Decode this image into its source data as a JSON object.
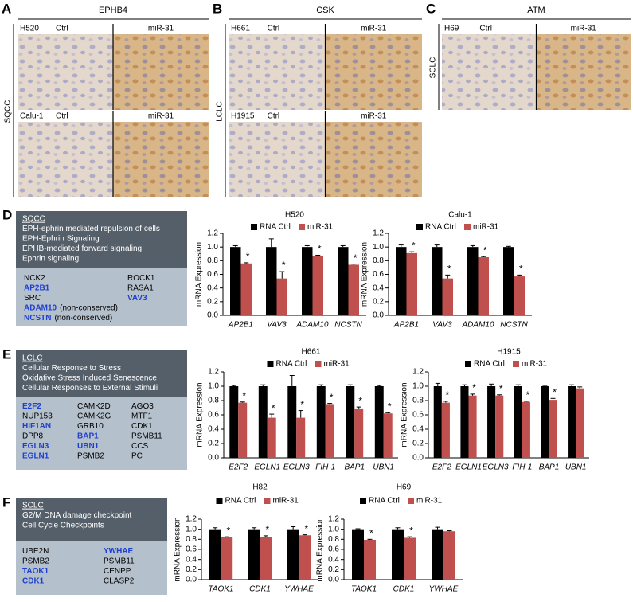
{
  "figure": {
    "panels": [
      {
        "letter": "A",
        "title": "EPHB4",
        "tissue": "SQCC",
        "rows": [
          {
            "cell_line": "H520",
            "left": "Ctrl",
            "right": "miR-31"
          },
          {
            "cell_line": "Calu-1",
            "left": "Ctrl",
            "right": "miR-31"
          }
        ]
      },
      {
        "letter": "B",
        "title": "CSK",
        "tissue": "LCLC",
        "rows": [
          {
            "cell_line": "H661",
            "left": "Ctrl",
            "right": "miR-31"
          },
          {
            "cell_line": "H1915",
            "left": "Ctrl",
            "right": "miR-31"
          }
        ]
      },
      {
        "letter": "C",
        "title": "ATM",
        "tissue": "SCLC",
        "rows": [
          {
            "cell_line": "H69",
            "left": "Ctrl",
            "right": "miR-31"
          }
        ]
      }
    ],
    "pathway_boxes": [
      {
        "letter": "D",
        "header": [
          "SQCC",
          "EPH-ephrin mediated repulsion of cells",
          "EPH-Ephrin Signaling",
          "EPHB-mediated forward signaling",
          "Ephrin signaling"
        ],
        "columns": [
          [
            {
              "gene": "NCK2"
            },
            {
              "gene": "AP2B1",
              "highlight": true
            },
            {
              "gene": "SRC"
            },
            {
              "gene": "ADAM10",
              "highlight": true,
              "note": "(non-conserved)"
            },
            {
              "gene": "NCSTN",
              "highlight": true,
              "note": "(non-conserved)"
            }
          ],
          [
            {
              "gene": "ROCK1"
            },
            {
              "gene": "RASA1"
            },
            {
              "gene": "VAV3",
              "highlight": true
            }
          ]
        ]
      },
      {
        "letter": "E",
        "header": [
          "LCLC",
          "Cellular Response to Stress",
          "Oxidative Stress Induced Senescence",
          "Cellular Responses to External Stimuli"
        ],
        "columns": [
          [
            {
              "gene": "E2F2",
              "highlight": true
            },
            {
              "gene": "NUP153"
            },
            {
              "gene": "HIF1AN",
              "highlight": true
            },
            {
              "gene": "DPP8"
            },
            {
              "gene": "EGLN3",
              "highlight": true
            },
            {
              "gene": "EGLN1",
              "highlight": true
            }
          ],
          [
            {
              "gene": "CAMK2D"
            },
            {
              "gene": "CAMK2G"
            },
            {
              "gene": "GRB10"
            },
            {
              "gene": "BAP1",
              "highlight": true
            },
            {
              "gene": "UBN1",
              "highlight": true
            },
            {
              "gene": "PSMB2"
            }
          ],
          [
            {
              "gene": "AGO3"
            },
            {
              "gene": "MTF1"
            },
            {
              "gene": "CDK1"
            },
            {
              "gene": "PSMB11"
            },
            {
              "gene": "CCS"
            },
            {
              "gene": "PC"
            }
          ]
        ]
      },
      {
        "letter": "F",
        "header": [
          "SCLC",
          "G2/M DNA damage checkpoint",
          "Cell Cycle Checkpoints"
        ],
        "columns": [
          [
            {
              "gene": "UBE2N"
            },
            {
              "gene": "PSMB2"
            },
            {
              "gene": "TAOK1",
              "highlight": true
            },
            {
              "gene": "CDK1",
              "highlight": true
            }
          ],
          [
            {
              "gene": "YWHAE",
              "highlight": true
            },
            {
              "gene": "PSMB11"
            },
            {
              "gene": "CENPP"
            },
            {
              "gene": "CLASP2"
            }
          ]
        ]
      }
    ]
  },
  "chart_data": [
    {
      "type": "bar",
      "title": "H520",
      "ylabel": "mRNA Expression",
      "categories": [
        "AP2B1",
        "VAV3",
        "ADAM10",
        "NCSTN"
      ],
      "series": [
        {
          "name": "RNA Ctrl",
          "color": "#000000",
          "values": [
            1.0,
            1.0,
            1.0,
            1.0
          ],
          "errors": [
            0.02,
            0.12,
            0.02,
            0.02
          ]
        },
        {
          "name": "miR-31",
          "color": "#c0504d",
          "values": [
            0.76,
            0.54,
            0.87,
            0.74
          ],
          "errors": [
            0.01,
            0.1,
            0.01,
            0.01
          ],
          "annotations": [
            "*",
            "*",
            "*",
            "*"
          ]
        }
      ],
      "ylim": [
        0,
        1.2
      ],
      "yticks": [
        {
          "value": 0,
          "label": "0.0"
        },
        {
          "value": 0.2,
          "label": "0.2"
        },
        {
          "value": 0.4,
          "label": "0.4"
        },
        {
          "value": 0.6,
          "label": "0.6"
        },
        {
          "value": 0.8,
          "label": "0.8"
        },
        {
          "value": 1.0,
          "label": "1.0"
        },
        {
          "value": 1.2,
          "label": "1.2"
        }
      ]
    },
    {
      "type": "bar",
      "title": "Calu-1",
      "ylabel": "mRNA Expression",
      "categories": [
        "AP2B1",
        "VAV3",
        "ADAM10",
        "NCSTN"
      ],
      "series": [
        {
          "name": "RNA Ctrl",
          "color": "#000000",
          "values": [
            1.0,
            1.0,
            1.0,
            1.0
          ],
          "errors": [
            0.03,
            0.03,
            0.02,
            0.01
          ]
        },
        {
          "name": "miR-31",
          "color": "#c0504d",
          "values": [
            0.91,
            0.54,
            0.85,
            0.57
          ],
          "errors": [
            0.02,
            0.05,
            0.01,
            0.02
          ],
          "annotations": [
            "*",
            "*",
            "*",
            "*"
          ]
        }
      ],
      "ylim": [
        0,
        1.2
      ],
      "yticks": [
        {
          "value": 0,
          "label": "0.0"
        },
        {
          "value": 0.2,
          "label": "0.2"
        },
        {
          "value": 0.4,
          "label": "0.4"
        },
        {
          "value": 0.6,
          "label": "0.6"
        },
        {
          "value": 0.8,
          "label": "0.8"
        },
        {
          "value": 1.0,
          "label": "1.0"
        },
        {
          "value": 1.2,
          "label": "1.2"
        }
      ]
    },
    {
      "type": "bar",
      "title": "H661",
      "ylabel": "mRNA Expression",
      "categories": [
        "E2F2",
        "EGLN1",
        "EGLN3",
        "FIH-1",
        "BAP1",
        "UBN1"
      ],
      "series": [
        {
          "name": "RNA Ctrl",
          "color": "#000000",
          "values": [
            1.0,
            1.0,
            1.0,
            1.0,
            1.0,
            1.0
          ],
          "errors": [
            0.01,
            0.02,
            0.15,
            0.02,
            0.02,
            0.01
          ]
        },
        {
          "name": "miR-31",
          "color": "#c0504d",
          "values": [
            0.77,
            0.56,
            0.56,
            0.75,
            0.69,
            0.62
          ],
          "errors": [
            0.01,
            0.05,
            0.1,
            0.01,
            0.02,
            0.01
          ],
          "annotations": [
            "*",
            "*",
            "*",
            "*",
            "*",
            "*"
          ]
        }
      ],
      "ylim": [
        0,
        1.2
      ],
      "yticks": [
        {
          "value": 0,
          "label": "0.0"
        },
        {
          "value": 0.2,
          "label": "0.2"
        },
        {
          "value": 0.4,
          "label": "0.4"
        },
        {
          "value": 0.6,
          "label": "0.6"
        },
        {
          "value": 0.8,
          "label": "0.8"
        },
        {
          "value": 1.0,
          "label": "1.0"
        },
        {
          "value": 1.2,
          "label": "1.2"
        }
      ]
    },
    {
      "type": "bar",
      "title": "H1915",
      "ylabel": "mRNA Expression",
      "categories": [
        "E2F2",
        "EGLN1",
        "EGLN3",
        "FIH-1",
        "BAP1",
        "UBN1"
      ],
      "series": [
        {
          "name": "RNA Ctrl",
          "color": "#000000",
          "values": [
            1.0,
            1.0,
            1.0,
            1.0,
            1.0,
            1.0
          ],
          "errors": [
            0.04,
            0.02,
            0.03,
            0.02,
            0.01,
            0.02
          ]
        },
        {
          "name": "miR-31",
          "color": "#c0504d",
          "values": [
            0.77,
            0.87,
            0.87,
            0.78,
            0.81,
            0.97
          ],
          "errors": [
            0.02,
            0.02,
            0.01,
            0.01,
            0.02,
            0.02
          ],
          "annotations": [
            "*",
            "*",
            "*",
            "*",
            "*",
            null
          ]
        }
      ],
      "ylim": [
        0,
        1.2
      ],
      "yticks": [
        {
          "value": 0,
          "label": "0.0"
        },
        {
          "value": 0.2,
          "label": "0.2"
        },
        {
          "value": 0.4,
          "label": "0.4"
        },
        {
          "value": 0.6,
          "label": "0.6"
        },
        {
          "value": 0.8,
          "label": "0.8"
        },
        {
          "value": 1.0,
          "label": "1.0"
        },
        {
          "value": 1.2,
          "label": "1.2"
        }
      ]
    },
    {
      "type": "bar",
      "title": "H82",
      "ylabel": "mRNA Expression",
      "categories": [
        "TAOK1",
        "CDK1",
        "YWHAE"
      ],
      "series": [
        {
          "name": "RNA Ctrl",
          "color": "#000000",
          "values": [
            1.0,
            1.0,
            1.0
          ],
          "errors": [
            0.03,
            0.03,
            0.05
          ]
        },
        {
          "name": "miR-31",
          "color": "#c0504d",
          "values": [
            0.84,
            0.85,
            0.88
          ],
          "errors": [
            0.01,
            0.02,
            0.01
          ],
          "annotations": [
            "*",
            "*",
            "*"
          ]
        }
      ],
      "ylim": [
        0,
        1.2
      ],
      "yticks": [
        {
          "value": 0,
          "label": "0.0"
        },
        {
          "value": 0.2,
          "label": "0.2"
        },
        {
          "value": 0.4,
          "label": "0.4"
        },
        {
          "value": 0.6,
          "label": "0.6"
        },
        {
          "value": 0.8,
          "label": "0.8"
        },
        {
          "value": 1.0,
          "label": "1.0"
        },
        {
          "value": 1.2,
          "label": "1.2"
        }
      ]
    },
    {
      "type": "bar",
      "title": "H69",
      "ylabel": "mRNA Expression",
      "categories": [
        "TAOK1",
        "CDK1",
        "YWHAE"
      ],
      "series": [
        {
          "name": "RNA Ctrl",
          "color": "#000000",
          "values": [
            1.0,
            1.0,
            1.0
          ],
          "errors": [
            0.01,
            0.03,
            0.04
          ]
        },
        {
          "name": "miR-31",
          "color": "#c0504d",
          "values": [
            0.79,
            0.83,
            0.96
          ],
          "errors": [
            0.01,
            0.02,
            0.01
          ],
          "annotations": [
            "*",
            "*",
            null
          ]
        }
      ],
      "ylim": [
        0,
        1.2
      ],
      "yticks": [
        {
          "value": 0,
          "label": "0.0"
        },
        {
          "value": 0.2,
          "label": "0.2"
        },
        {
          "value": 0.4,
          "label": "0.4"
        },
        {
          "value": 0.6,
          "label": "0.6"
        },
        {
          "value": 0.8,
          "label": "0.8"
        },
        {
          "value": 1.0,
          "label": "1.0"
        },
        {
          "value": 1.2,
          "label": "1.2"
        }
      ]
    }
  ]
}
